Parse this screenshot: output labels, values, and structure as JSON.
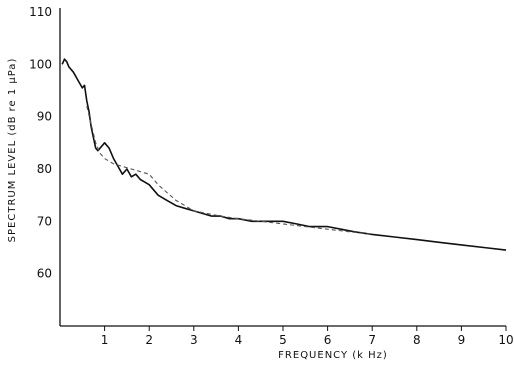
{
  "chart_data": {
    "type": "line",
    "title": "",
    "xlabel": "FREQUENCY (k Hz)",
    "ylabel": "SPECTRUM  LEVEL (dB re 1 μPa)",
    "xlim": [
      0,
      10
    ],
    "ylim": [
      50,
      110
    ],
    "x_tick_labels": [
      "1",
      "2",
      "3",
      "4",
      "5",
      "6",
      "7",
      "8",
      "9",
      "10"
    ],
    "x_ticks": [
      1,
      2,
      3,
      4,
      5,
      6,
      7,
      8,
      9,
      10
    ],
    "y_tick_labels": [
      "60",
      "70",
      "80",
      "90",
      "100",
      "110"
    ],
    "y_ticks": [
      60,
      70,
      80,
      90,
      100,
      110
    ],
    "grid": false,
    "legend": "none",
    "series": [
      {
        "style": "solid",
        "color": "#111111",
        "x": [
          0.05,
          0.1,
          0.15,
          0.2,
          0.3,
          0.4,
          0.5,
          0.55,
          0.6,
          0.65,
          0.7,
          0.75,
          0.8,
          0.85,
          0.9,
          1.0,
          1.1,
          1.2,
          1.3,
          1.4,
          1.5,
          1.6,
          1.7,
          1.8,
          1.9,
          2.0,
          2.2,
          2.4,
          2.6,
          2.8,
          3.0,
          3.2,
          3.4,
          3.6,
          3.8,
          4.0,
          4.3,
          4.6,
          5.0,
          5.3,
          5.6,
          6.0,
          6.3,
          6.6,
          7.0,
          7.5,
          8.0,
          8.5,
          9.0,
          9.5,
          10.0
        ],
        "y": [
          100,
          101,
          100.5,
          99.5,
          98.5,
          97,
          95.5,
          96,
          93,
          91,
          88,
          86,
          84,
          83.5,
          84,
          85,
          84,
          82,
          80.5,
          79,
          80,
          78.5,
          79,
          78,
          77.5,
          77,
          75,
          74,
          73,
          72.5,
          72,
          71.5,
          71,
          71,
          70.5,
          70.5,
          70,
          70,
          70,
          69.5,
          69,
          69,
          68.5,
          68,
          67.5,
          67,
          66.5,
          66,
          65.5,
          65,
          64.5
        ]
      },
      {
        "style": "dashed",
        "color": "#555555",
        "x": [
          0.6,
          0.7,
          0.8,
          0.9,
          1.0,
          1.2,
          1.4,
          1.6,
          1.8,
          2.0,
          2.2,
          2.4,
          2.6,
          2.8,
          3.0,
          3.3,
          3.6,
          4.0,
          4.5,
          5.0,
          5.5,
          6.0,
          6.5,
          7.0
        ],
        "y": [
          92,
          88.5,
          85,
          83,
          82,
          81,
          80.5,
          80,
          79.5,
          79,
          77,
          75.5,
          74,
          73,
          72,
          71.5,
          71,
          70.5,
          70,
          69.5,
          69,
          68.5,
          68,
          67.5
        ]
      }
    ]
  }
}
